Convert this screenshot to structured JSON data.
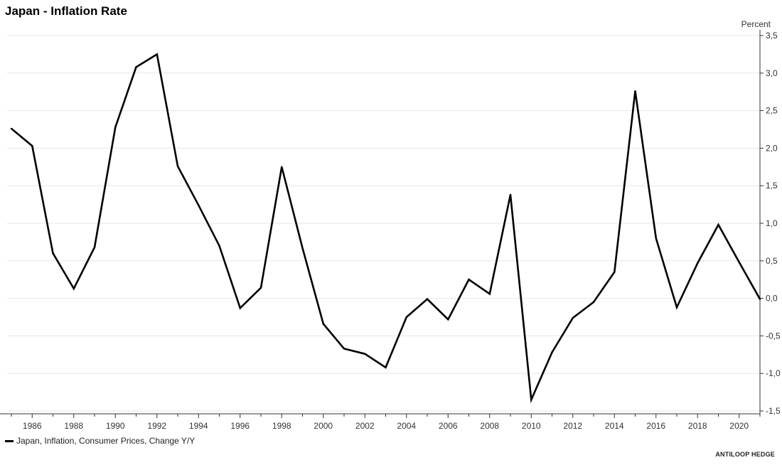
{
  "header": {
    "title": "Japan - Inflation Rate"
  },
  "legend": {
    "label": "Japan, Inflation, Consumer Prices, Change Y/Y"
  },
  "footer": {
    "source": "ANTILOOP HEDGE"
  },
  "colors": {
    "line": "#000000",
    "grid": "#e6e6e6",
    "axis": "#333333"
  },
  "chart_data": {
    "type": "line",
    "title": "Japan - Inflation Rate",
    "xlabel": "",
    "ylabel": "Percent",
    "ylim": [
      -1.5,
      3.5
    ],
    "xlim": [
      1985,
      2021
    ],
    "y_ticks": [
      "3,5",
      "3,0",
      "2,5",
      "2,0",
      "1,5",
      "1,0",
      "0,5",
      "0,0",
      "-0,5",
      "-1,0",
      "-1,5"
    ],
    "y_tick_values": [
      3.5,
      3.0,
      2.5,
      2.0,
      1.5,
      1.0,
      0.5,
      0.0,
      -0.5,
      -1.0,
      -1.5
    ],
    "x_ticks": [
      "1986",
      "1988",
      "1990",
      "1992",
      "1994",
      "1996",
      "1998",
      "2000",
      "2002",
      "2004",
      "2006",
      "2008",
      "2010",
      "2012",
      "2014",
      "2016",
      "2018",
      "2020"
    ],
    "x_tick_values": [
      1986,
      1988,
      1990,
      1992,
      1994,
      1996,
      1998,
      2000,
      2002,
      2004,
      2006,
      2008,
      2010,
      2012,
      2014,
      2016,
      2018,
      2020
    ],
    "grid": true,
    "y_axis_side": "right",
    "legend_position": "bottom-left",
    "series": [
      {
        "name": "Japan, Inflation, Consumer Prices, Change Y/Y",
        "x": [
          1985,
          1986,
          1987,
          1988,
          1989,
          1990,
          1991,
          1992,
          1993,
          1994,
          1995,
          1996,
          1997,
          1998,
          1999,
          2000,
          2001,
          2002,
          2003,
          2004,
          2005,
          2006,
          2007,
          2008,
          2009,
          2010,
          2011,
          2012,
          2013,
          2014,
          2015,
          2016,
          2017,
          2018,
          2019,
          2020,
          2021
        ],
        "values": [
          2.26,
          2.03,
          0.6,
          0.13,
          0.68,
          2.28,
          3.08,
          3.25,
          1.76,
          1.24,
          0.7,
          -0.13,
          0.14,
          1.75,
          0.67,
          -0.34,
          -0.67,
          -0.74,
          -0.92,
          -0.25,
          -0.01,
          -0.28,
          0.25,
          0.06,
          1.38,
          -1.35,
          -0.72,
          -0.26,
          -0.05,
          0.35,
          2.76,
          0.8,
          -0.12,
          0.47,
          0.98,
          0.48,
          -0.01
        ]
      }
    ]
  }
}
